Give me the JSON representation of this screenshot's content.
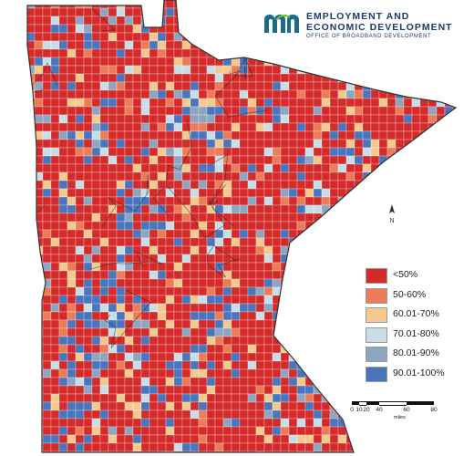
{
  "logo": {
    "line1": "EMPLOYMENT AND",
    "line2": "ECONOMIC DEVELOPMENT",
    "line3": "OFFICE OF BROADBAND DEVELOPMENT",
    "mark_color": "#1a6b8a",
    "accent_color": "#79b93a"
  },
  "legend": {
    "items": [
      {
        "label": "<50%",
        "color": "#d42a2a"
      },
      {
        "label": "50-60%",
        "color": "#ee7b57"
      },
      {
        "label": "60.01-70%",
        "color": "#f5c98e"
      },
      {
        "label": "70.01-80%",
        "color": "#c8dde6"
      },
      {
        "label": "80.01-90%",
        "color": "#8ea5c2"
      },
      {
        "label": "90.01-100%",
        "color": "#4a75bd"
      }
    ]
  },
  "scale": {
    "ticks": [
      "0",
      "10",
      "20",
      "40",
      "60",
      "80"
    ],
    "unit": "miles"
  },
  "north_arrow": "north-arrow-icon"
}
